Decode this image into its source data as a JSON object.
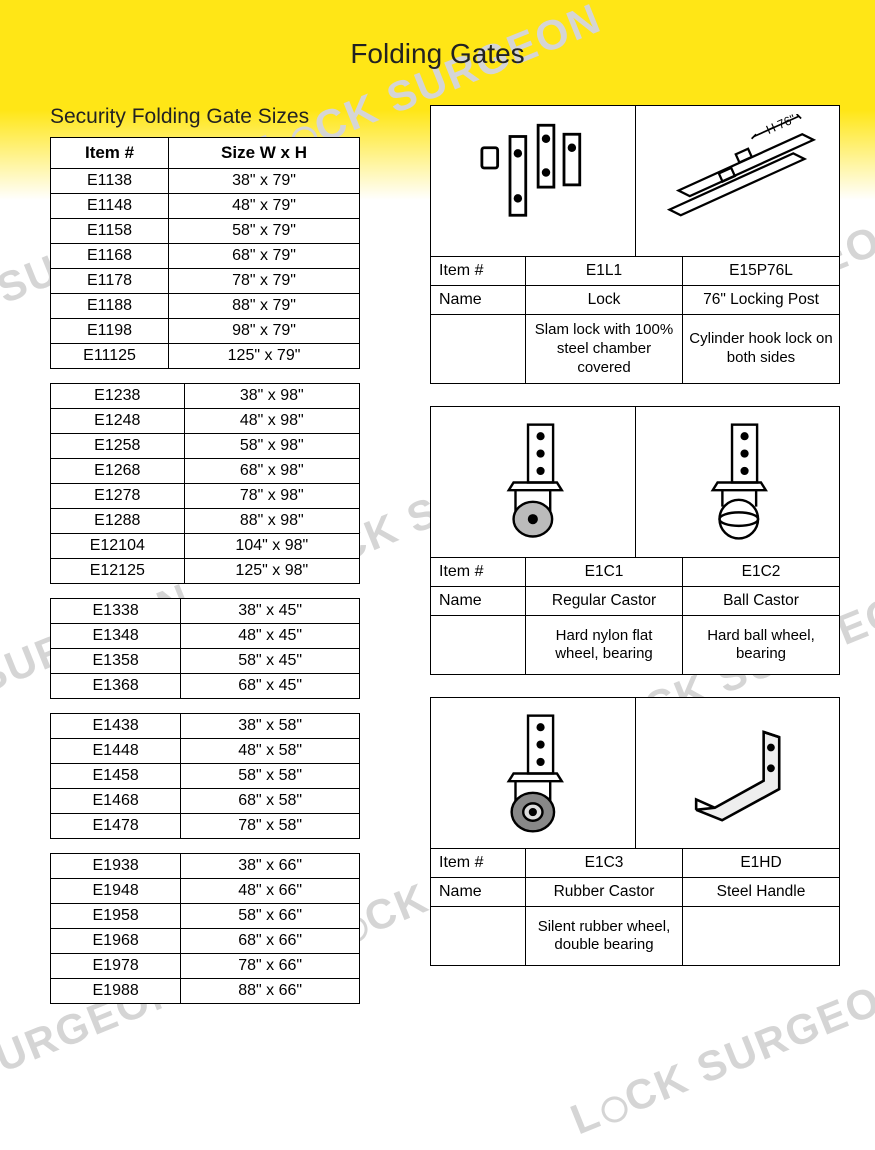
{
  "page_title": "Folding Gates",
  "subtitle": "Security Folding Gate Sizes",
  "watermark_text": "LOCK SURGEON",
  "colors": {
    "header_yellow": "#ffe616",
    "border": "#000000",
    "text": "#222222",
    "watermark": "#d5d5d5",
    "background": "#ffffff"
  },
  "size_table_headers": [
    "Item #",
    "Size W x H"
  ],
  "size_groups": [
    [
      {
        "item": "E1138",
        "size": "38\" x 79\""
      },
      {
        "item": "E1148",
        "size": "48\" x 79\""
      },
      {
        "item": "E1158",
        "size": "58\" x 79\""
      },
      {
        "item": "E1168",
        "size": "68\" x 79\""
      },
      {
        "item": "E1178",
        "size": "78\" x 79\""
      },
      {
        "item": "E1188",
        "size": "88\" x 79\""
      },
      {
        "item": "E1198",
        "size": "98\" x 79\""
      },
      {
        "item": "E11125",
        "size": "125\" x 79\""
      }
    ],
    [
      {
        "item": "E1238",
        "size": "38\" x 98\""
      },
      {
        "item": "E1248",
        "size": "48\" x 98\""
      },
      {
        "item": "E1258",
        "size": "58\" x 98\""
      },
      {
        "item": "E1268",
        "size": "68\" x 98\""
      },
      {
        "item": "E1278",
        "size": "78\" x 98\""
      },
      {
        "item": "E1288",
        "size": "88\" x 98\""
      },
      {
        "item": "E12104",
        "size": "104\" x 98\""
      },
      {
        "item": "E12125",
        "size": "125\" x 98\""
      }
    ],
    [
      {
        "item": "E1338",
        "size": "38\" x 45\""
      },
      {
        "item": "E1348",
        "size": "48\" x 45\""
      },
      {
        "item": "E1358",
        "size": "58\" x 45\""
      },
      {
        "item": "E1368",
        "size": "68\" x 45\""
      }
    ],
    [
      {
        "item": "E1438",
        "size": "38\" x 58\""
      },
      {
        "item": "E1448",
        "size": "48\" x 58\""
      },
      {
        "item": "E1458",
        "size": "58\" x 58\""
      },
      {
        "item": "E1468",
        "size": "68\" x 58\""
      },
      {
        "item": "E1478",
        "size": "78\" x 58\""
      }
    ],
    [
      {
        "item": "E1938",
        "size": "38\" x 66\""
      },
      {
        "item": "E1948",
        "size": "48\" x 66\""
      },
      {
        "item": "E1958",
        "size": "58\" x 66\""
      },
      {
        "item": "E1968",
        "size": "68\" x 66\""
      },
      {
        "item": "E1978",
        "size": "78\" x 66\""
      },
      {
        "item": "E1988",
        "size": "88\" x 66\""
      }
    ]
  ],
  "part_labels": {
    "item": "Item #",
    "name": "Name"
  },
  "part_cards": [
    {
      "items": [
        {
          "id": "E1L1",
          "name": "Lock",
          "desc": "Slam lock with 100% steel chamber covered",
          "icon": "lock-parts"
        },
        {
          "id": "E15P76L",
          "name": "76\" Locking Post",
          "desc": "Cylinder hook lock on both sides",
          "icon": "locking-post"
        }
      ]
    },
    {
      "items": [
        {
          "id": "E1C1",
          "name": "Regular Castor",
          "desc": "Hard nylon flat wheel, bearing",
          "icon": "castor-flat"
        },
        {
          "id": "E1C2",
          "name": "Ball Castor",
          "desc": "Hard ball wheel, bearing",
          "icon": "castor-ball"
        }
      ]
    },
    {
      "items": [
        {
          "id": "E1C3",
          "name": "Rubber Castor",
          "desc": "Silent rubber wheel, double bearing",
          "icon": "castor-rubber"
        },
        {
          "id": "E1HD",
          "name": "Steel Handle",
          "desc": "",
          "icon": "steel-handle"
        }
      ]
    }
  ],
  "post_label": "H 76\""
}
